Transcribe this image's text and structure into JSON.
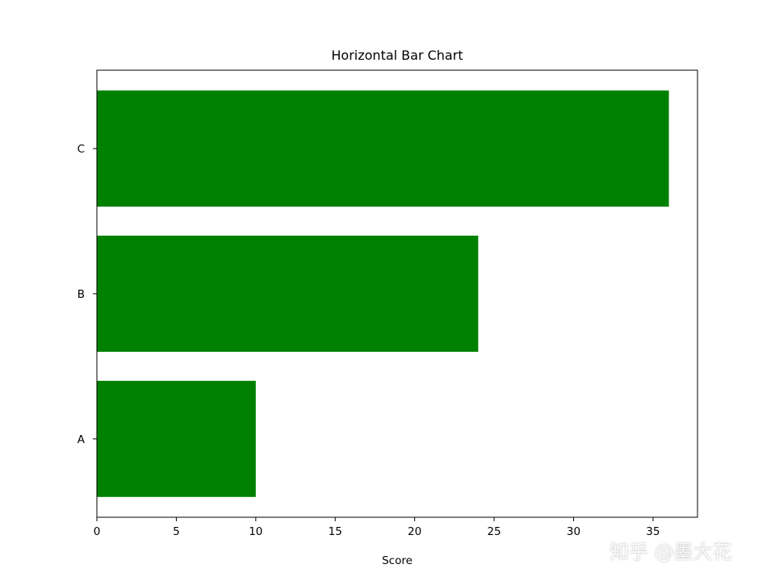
{
  "chart_data": {
    "type": "bar",
    "orientation": "horizontal",
    "title": "Horizontal Bar Chart",
    "xlabel": "Score",
    "ylabel": "",
    "categories": [
      "A",
      "B",
      "C"
    ],
    "values": [
      10,
      24,
      36
    ],
    "xlim": [
      0,
      37.8
    ],
    "xticks": [
      0,
      5,
      10,
      15,
      20,
      25,
      30,
      35
    ],
    "bar_color": "#008000",
    "grid": false
  },
  "watermark": "知乎 @墨大花"
}
